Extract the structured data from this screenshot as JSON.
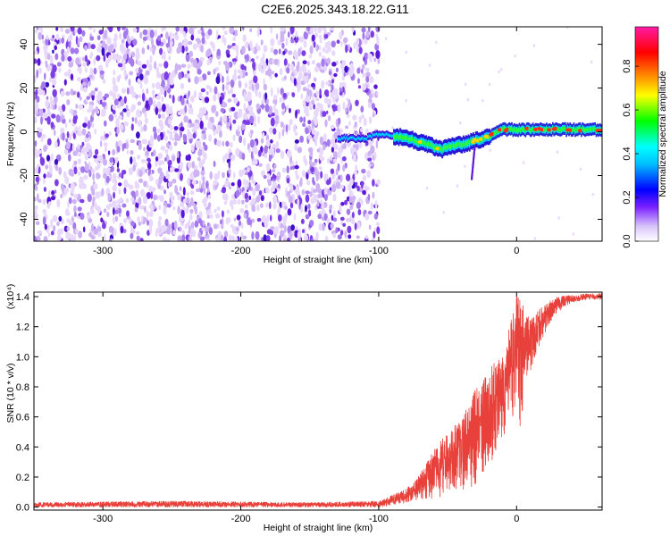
{
  "title": "C2E6.2025.343.18.22.G11",
  "chart_data": [
    {
      "type": "heatmap",
      "xlabel": "Height of straight line (km)",
      "ylabel": "Frequency (Hz)",
      "xlim": [
        -350,
        62
      ],
      "ylim": [
        -50,
        48
      ],
      "xticks": [
        -300,
        -200,
        -100,
        0
      ],
      "xtick_labels": [
        "-300",
        "-200",
        "-100",
        "0"
      ],
      "yticks": [
        -40,
        -20,
        0,
        20,
        40
      ],
      "ytick_labels": [
        "-40",
        "-20",
        "0",
        "20",
        "40"
      ],
      "noise_region_x": [
        -350,
        -100
      ],
      "signal_track": {
        "x": [
          -130,
          -110,
          -100,
          -90,
          -80,
          -70,
          -60,
          -55,
          -50,
          -45,
          -40,
          -35,
          -30,
          -20,
          -10,
          0,
          10,
          20,
          30,
          40,
          50,
          62
        ],
        "freq": [
          -3,
          -3,
          -1,
          -2,
          -3,
          -5,
          -7,
          -8,
          -7,
          -6,
          -6,
          -5,
          -4,
          -2,
          1,
          1,
          1,
          1,
          1,
          1,
          1,
          1
        ]
      },
      "colorbar": {
        "label": "Normalized spectral amplitude",
        "range": [
          0.0,
          0.98
        ],
        "ticks": [
          0.0,
          0.2,
          0.4,
          0.6,
          0.8
        ],
        "tick_labels": [
          "0.0",
          "0.2",
          "0.4",
          "0.6",
          "0.8"
        ]
      }
    },
    {
      "type": "line",
      "xlabel": "Height of straight line (km)",
      "ylabel": "SNR (10 * v/v)",
      "multiplier": "(x10⁴)",
      "xlim": [
        -350,
        62
      ],
      "ylim": [
        -0.02,
        1.43
      ],
      "xticks": [
        -300,
        -200,
        -100,
        0
      ],
      "xtick_labels": [
        "-300",
        "-200",
        "-100",
        "0"
      ],
      "yticks": [
        0.0,
        0.2,
        0.4,
        0.6,
        0.8,
        1.0,
        1.2,
        1.4
      ],
      "ytick_labels": [
        "0.0",
        "0.2",
        "0.4",
        "0.6",
        "0.8",
        "1.0",
        "1.2",
        "1.4"
      ],
      "series": [
        {
          "name": "SNR",
          "color": "#e8403a",
          "envelope_x": [
            -350,
            -250,
            -150,
            -100,
            -90,
            -80,
            -70,
            -60,
            -50,
            -40,
            -30,
            -20,
            -10,
            -5,
            0,
            10,
            20,
            30,
            40,
            50,
            62
          ],
          "envelope_upper": [
            0.03,
            0.04,
            0.03,
            0.04,
            0.08,
            0.12,
            0.22,
            0.38,
            0.5,
            0.58,
            0.78,
            0.92,
            1.02,
            1.2,
            1.42,
            1.25,
            1.35,
            1.4,
            1.41,
            1.42,
            1.42
          ],
          "envelope_lower": [
            0.0,
            0.0,
            0.0,
            0.0,
            0.01,
            0.02,
            0.04,
            0.05,
            0.08,
            0.1,
            0.14,
            0.25,
            0.45,
            0.6,
            0.4,
            0.9,
            1.15,
            1.3,
            1.36,
            1.38,
            1.38
          ]
        }
      ]
    }
  ],
  "colors": {
    "line": "#e8403a",
    "noise": [
      "#e8d8fb",
      "#cdb2f4",
      "#a47aec",
      "#7d3ee6",
      "#5a16d8",
      "#3a10c8"
    ],
    "axis": "#000000"
  }
}
